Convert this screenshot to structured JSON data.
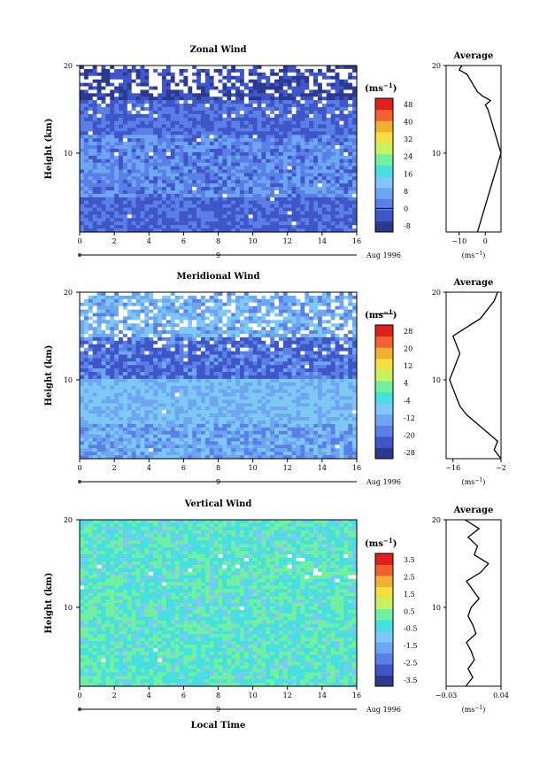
{
  "colors": {
    "zonal_scale": [
      "#2b3a8e",
      "#3f56c8",
      "#5a7fe6",
      "#6ea6f2",
      "#7ec8f6",
      "#46e0e0",
      "#70f0a0",
      "#c8f060",
      "#f0e040",
      "#f0b030",
      "#f06030",
      "#e02020"
    ],
    "meridional_scale": [
      "#2b3a8e",
      "#3f56c8",
      "#5a7fe6",
      "#6ea6f2",
      "#7ec8f6",
      "#46e0e0",
      "#70f0a0",
      "#c8f060",
      "#f0e040",
      "#f0b030",
      "#f06030",
      "#e02020"
    ],
    "vertical_scale": [
      "#2b3a8e",
      "#3f56c8",
      "#5a7fe6",
      "#6ea6f2",
      "#7ec8f6",
      "#46e0e0",
      "#70f0a0",
      "#c8f060",
      "#f0e040",
      "#f0b030",
      "#f06030",
      "#e02020"
    ]
  },
  "common": {
    "xlabel": "Local Time",
    "ylabel": "Height (km)",
    "x_ticks": [
      "0",
      "2",
      "4",
      "6",
      "8",
      "10",
      "12",
      "14",
      "16"
    ],
    "date_label": "Aug 1996",
    "day_label": "9",
    "units": "(ms",
    "units_sup": "−1",
    "units_close": ")",
    "average_title": "Average",
    "y_ticks": [
      "20",
      "10"
    ]
  },
  "chart_data": [
    {
      "type": "heatmap",
      "title": "Zonal Wind",
      "xlabel": "Local Time",
      "ylabel": "Height (km)",
      "xlim": [
        0,
        16
      ],
      "ylim": [
        1,
        20
      ],
      "colorbar_ticks": [
        "48",
        "40",
        "32",
        "24",
        "16",
        "8",
        "0",
        "-8"
      ],
      "zero_line_level": "0",
      "band_means": [
        [
          1,
          -5
        ],
        [
          3,
          -3
        ],
        [
          5,
          0
        ],
        [
          7,
          2
        ],
        [
          9,
          4
        ],
        [
          11,
          2
        ],
        [
          13,
          0
        ],
        [
          15,
          -2
        ],
        [
          17,
          -4
        ],
        [
          19,
          -8
        ]
      ],
      "profile": {
        "title": "Average",
        "x_ticks": [
          "−10",
          "0"
        ],
        "xlim": [
          -15,
          6
        ],
        "points": [
          [
            -3,
            1
          ],
          [
            -2,
            2
          ],
          [
            -1,
            3
          ],
          [
            0,
            4
          ],
          [
            1,
            5
          ],
          [
            2,
            6
          ],
          [
            3,
            7
          ],
          [
            4,
            8
          ],
          [
            5,
            9
          ],
          [
            6,
            10
          ],
          [
            5,
            11
          ],
          [
            4,
            12
          ],
          [
            3,
            13
          ],
          [
            2,
            14
          ],
          [
            1,
            15
          ],
          [
            0,
            15.5
          ],
          [
            2,
            16
          ],
          [
            -1,
            16.5
          ],
          [
            -3,
            17
          ],
          [
            -5,
            18
          ],
          [
            -7,
            19
          ],
          [
            -10,
            19.5
          ],
          [
            -9,
            20
          ]
        ]
      }
    },
    {
      "type": "heatmap",
      "title": "Meridional Wind",
      "xlabel": "Local Time",
      "ylabel": "Height (km)",
      "xlim": [
        0,
        16
      ],
      "ylim": [
        1,
        20
      ],
      "colorbar_ticks": [
        "28",
        "20",
        "12",
        "4",
        "-4",
        "-12",
        "-20",
        "-28"
      ],
      "zero_line_level": "0",
      "band_means": [
        [
          1,
          -18
        ],
        [
          3,
          -12
        ],
        [
          5,
          -6
        ],
        [
          7,
          -10
        ],
        [
          9,
          -14
        ],
        [
          11,
          -16
        ],
        [
          13,
          -20
        ],
        [
          15,
          -14
        ],
        [
          17,
          -10
        ],
        [
          19,
          -4
        ]
      ],
      "profile": {
        "title": "Average",
        "x_ticks": [
          "−16",
          "−2"
        ],
        "xlim": [
          -18,
          -2
        ],
        "points": [
          [
            -2,
            1
          ],
          [
            -4,
            2
          ],
          [
            -3,
            3
          ],
          [
            -6,
            4
          ],
          [
            -9,
            5
          ],
          [
            -12,
            6
          ],
          [
            -14,
            7
          ],
          [
            -15,
            8
          ],
          [
            -16,
            9
          ],
          [
            -17,
            10
          ],
          [
            -16,
            11
          ],
          [
            -15,
            12
          ],
          [
            -14,
            13
          ],
          [
            -15,
            14
          ],
          [
            -16,
            15
          ],
          [
            -12,
            16
          ],
          [
            -8,
            17
          ],
          [
            -6,
            18
          ],
          [
            -4,
            19
          ],
          [
            -3,
            20
          ]
        ]
      }
    },
    {
      "type": "heatmap",
      "title": "Vertical Wind",
      "xlabel": "Local Time",
      "ylabel": "Height (km)",
      "xlim": [
        0,
        16
      ],
      "ylim": [
        1,
        20
      ],
      "colorbar_ticks": [
        "3.5",
        "2.5",
        "1.5",
        "0.5",
        "-0.5",
        "-1.5",
        "-2.5",
        "-3.5"
      ],
      "band_means": [
        [
          1,
          -0.3
        ],
        [
          3,
          -0.2
        ],
        [
          5,
          0.1
        ],
        [
          7,
          0.2
        ],
        [
          9,
          -0.1
        ],
        [
          11,
          0.1
        ],
        [
          13,
          0.2
        ],
        [
          15,
          0
        ],
        [
          17,
          -0.2
        ],
        [
          19,
          -0.4
        ]
      ],
      "profile": {
        "title": "Average",
        "x_ticks": [
          "−0.03",
          "0.04"
        ],
        "xlim": [
          -0.03,
          0.04
        ],
        "points": [
          [
            -0.005,
            1
          ],
          [
            0.004,
            2
          ],
          [
            -0.002,
            3
          ],
          [
            0.006,
            4
          ],
          [
            0.002,
            5
          ],
          [
            -0.004,
            6
          ],
          [
            0.008,
            7
          ],
          [
            0.004,
            8
          ],
          [
            -0.002,
            9
          ],
          [
            0.002,
            10
          ],
          [
            0.012,
            11
          ],
          [
            0.004,
            12
          ],
          [
            -0.004,
            13
          ],
          [
            0.014,
            14
          ],
          [
            0.024,
            15
          ],
          [
            0.006,
            16
          ],
          [
            0.01,
            17
          ],
          [
            -0.002,
            18
          ],
          [
            0.012,
            19
          ],
          [
            -0.006,
            20
          ]
        ]
      }
    }
  ]
}
